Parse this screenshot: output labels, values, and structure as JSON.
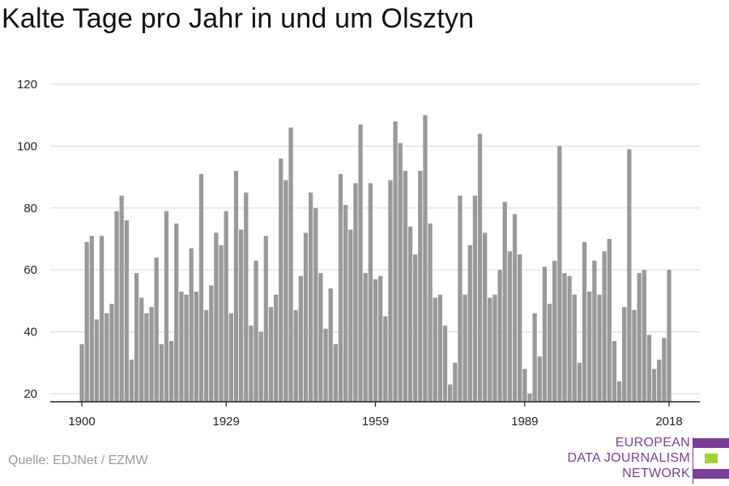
{
  "title": "Kalte Tage pro Jahr in und um Olsztyn",
  "source": "Quelle: EDJNet / EZMW",
  "logo": {
    "lines": [
      "EUROPEAN",
      "DATA JOURNALISM",
      "NETWORK"
    ],
    "colors": {
      "text": "#7b3e98",
      "purple": "#7b3e98",
      "green": "#9fd432"
    }
  },
  "chart_data": {
    "type": "bar",
    "title": "Kalte Tage pro Jahr in und um Olsztyn",
    "xlabel": "",
    "ylabel": "",
    "x": [
      1900,
      1901,
      1902,
      1903,
      1904,
      1905,
      1906,
      1907,
      1908,
      1909,
      1910,
      1911,
      1912,
      1913,
      1914,
      1915,
      1916,
      1917,
      1918,
      1919,
      1920,
      1921,
      1922,
      1923,
      1924,
      1925,
      1926,
      1927,
      1928,
      1929,
      1930,
      1931,
      1932,
      1933,
      1934,
      1935,
      1936,
      1937,
      1938,
      1939,
      1940,
      1941,
      1942,
      1943,
      1944,
      1945,
      1946,
      1947,
      1948,
      1949,
      1950,
      1951,
      1952,
      1953,
      1954,
      1955,
      1956,
      1957,
      1958,
      1959,
      1960,
      1961,
      1962,
      1963,
      1964,
      1965,
      1966,
      1967,
      1968,
      1969,
      1970,
      1971,
      1972,
      1973,
      1974,
      1975,
      1976,
      1977,
      1978,
      1979,
      1980,
      1981,
      1982,
      1983,
      1984,
      1985,
      1986,
      1987,
      1988,
      1989,
      1990,
      1991,
      1992,
      1993,
      1994,
      1995,
      1996,
      1997,
      1998,
      1999,
      2000,
      2001,
      2002,
      2003,
      2004,
      2005,
      2006,
      2007,
      2008,
      2009,
      2010,
      2011,
      2012,
      2013,
      2014,
      2015,
      2016,
      2017,
      2018
    ],
    "values": [
      36,
      69,
      71,
      44,
      71,
      46,
      49,
      79,
      84,
      76,
      31,
      59,
      51,
      46,
      48,
      64,
      36,
      79,
      37,
      75,
      53,
      52,
      67,
      53,
      91,
      47,
      55,
      72,
      68,
      79,
      46,
      92,
      73,
      85,
      42,
      63,
      40,
      71,
      48,
      52,
      96,
      89,
      106,
      47,
      58,
      72,
      85,
      80,
      59,
      41,
      54,
      36,
      91,
      81,
      73,
      88,
      107,
      59,
      88,
      57,
      58,
      45,
      89,
      108,
      101,
      92,
      74,
      65,
      92,
      110,
      75,
      51,
      52,
      42,
      23,
      30,
      84,
      52,
      68,
      84,
      104,
      72,
      51,
      52,
      60,
      82,
      66,
      78,
      65,
      28,
      20,
      46,
      32,
      61,
      49,
      63,
      100,
      59,
      58,
      52,
      30,
      69,
      53,
      63,
      52,
      66,
      70,
      37,
      24,
      48,
      99,
      47,
      59,
      60,
      39,
      28,
      31,
      38,
      60
    ],
    "xticks": [
      1900,
      1929,
      1959,
      1989,
      2018
    ],
    "yticks": [
      20,
      40,
      60,
      80,
      100,
      120
    ],
    "ylim": [
      18,
      123
    ],
    "grid": true,
    "colors": {
      "bar": "#999999",
      "grid": "#dddddd",
      "axis": "#222222",
      "text": "#222222"
    }
  }
}
